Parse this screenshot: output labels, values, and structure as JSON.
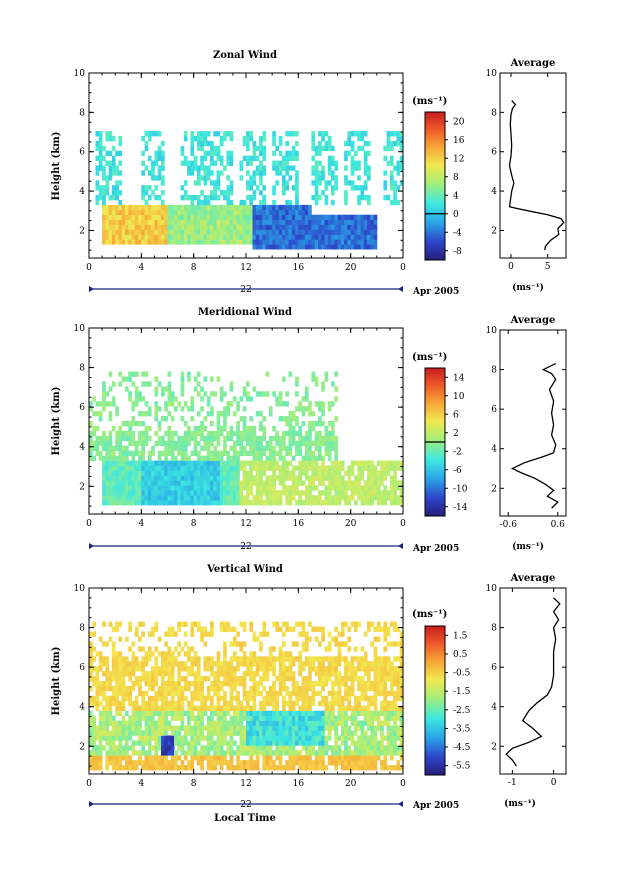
{
  "figure": {
    "date_label": "Apr 2005",
    "x_axis_title": "Local Time",
    "x_day_label": "22"
  },
  "chart_data": [
    {
      "type": "heatmap",
      "title": "Zonal Wind",
      "ylabel": "Height (km)",
      "x_ticks": [
        "0",
        "4",
        "8",
        "12",
        "16",
        "20",
        "0"
      ],
      "y_ticks": [
        "2",
        "4",
        "6",
        "8",
        "10"
      ],
      "xlim": [
        0,
        24
      ],
      "ylim": [
        0.6,
        10
      ],
      "colorbar": {
        "unit": "(ms⁻¹)",
        "labels": [
          "20",
          "16",
          "12",
          "8",
          "4",
          "0",
          "-4",
          "-8"
        ],
        "range": [
          -10,
          22
        ]
      },
      "average_profile": {
        "title": "Average",
        "xlabel": "(ms⁻¹)",
        "x_ticks": [
          "0",
          "5"
        ],
        "xlim": [
          -1.5,
          7.5
        ],
        "profile": [
          [
            4.6,
            1.0
          ],
          [
            4.7,
            1.2
          ],
          [
            5.4,
            1.5
          ],
          [
            6.5,
            1.8
          ],
          [
            6.4,
            2.1
          ],
          [
            7.2,
            2.4
          ],
          [
            6.8,
            2.6
          ],
          [
            5.0,
            2.8
          ],
          [
            3.0,
            2.95
          ],
          [
            1.0,
            3.1
          ],
          [
            -0.2,
            3.2
          ],
          [
            -0.1,
            3.5
          ],
          [
            0.1,
            4.0
          ],
          [
            0.4,
            4.4
          ],
          [
            0.1,
            4.8
          ],
          [
            -0.2,
            5.3
          ],
          [
            0.0,
            5.8
          ],
          [
            0.1,
            6.3
          ],
          [
            0.0,
            6.9
          ],
          [
            -0.1,
            7.4
          ],
          [
            0.0,
            7.9
          ],
          [
            0.2,
            8.2
          ],
          [
            0.6,
            8.4
          ],
          [
            0.1,
            8.6
          ]
        ]
      }
    },
    {
      "type": "heatmap",
      "title": "Meridional Wind",
      "ylabel": "Height (km)",
      "x_ticks": [
        "0",
        "4",
        "8",
        "12",
        "16",
        "20",
        "0"
      ],
      "y_ticks": [
        "2",
        "4",
        "6",
        "8",
        "10"
      ],
      "xlim": [
        0,
        24
      ],
      "ylim": [
        0.6,
        10
      ],
      "colorbar": {
        "unit": "(ms⁻¹)",
        "labels": [
          "14",
          "10",
          "6",
          "2",
          "-2",
          "-6",
          "-10",
          "-14"
        ],
        "range": [
          -16,
          16
        ]
      },
      "average_profile": {
        "title": "Average",
        "xlabel": "(ms⁻¹)",
        "x_ticks": [
          "-0.6",
          "0.6"
        ],
        "xlim": [
          -0.8,
          0.8
        ],
        "profile": [
          [
            0.45,
            1.0
          ],
          [
            0.6,
            1.3
          ],
          [
            0.35,
            1.6
          ],
          [
            0.5,
            1.9
          ],
          [
            0.3,
            2.2
          ],
          [
            0.05,
            2.5
          ],
          [
            -0.3,
            2.8
          ],
          [
            -0.5,
            3.0
          ],
          [
            -0.2,
            3.3
          ],
          [
            0.25,
            3.6
          ],
          [
            0.5,
            3.8
          ],
          [
            0.55,
            4.2
          ],
          [
            0.45,
            4.7
          ],
          [
            0.5,
            5.2
          ],
          [
            0.45,
            5.8
          ],
          [
            0.5,
            6.4
          ],
          [
            0.4,
            7.0
          ],
          [
            0.55,
            7.5
          ],
          [
            0.45,
            7.8
          ],
          [
            0.25,
            8.0
          ],
          [
            0.55,
            8.3
          ]
        ]
      }
    },
    {
      "type": "heatmap",
      "title": "Vertical Wind",
      "ylabel": "Height (km)",
      "xlabel": "Local Time",
      "x_ticks": [
        "0",
        "4",
        "8",
        "12",
        "16",
        "20",
        "0"
      ],
      "y_ticks": [
        "2",
        "4",
        "6",
        "8",
        "10"
      ],
      "xlim": [
        0,
        24
      ],
      "ylim": [
        0.6,
        10
      ],
      "colorbar": {
        "unit": "(ms⁻¹)",
        "labels": [
          "1.5",
          "0.5",
          "-0.5",
          "-1.5",
          "-2.5",
          "-3.5",
          "-4.5",
          "-5.5"
        ],
        "range": [
          -6,
          2
        ]
      },
      "average_profile": {
        "title": "Average",
        "xlabel": "(ms⁻¹)",
        "x_ticks": [
          "-1",
          "0"
        ],
        "xlim": [
          -1.3,
          0.3
        ],
        "profile": [
          [
            -0.9,
            1.0
          ],
          [
            -1.0,
            1.3
          ],
          [
            -1.15,
            1.6
          ],
          [
            -1.0,
            1.9
          ],
          [
            -0.6,
            2.2
          ],
          [
            -0.3,
            2.5
          ],
          [
            -0.5,
            2.9
          ],
          [
            -0.75,
            3.3
          ],
          [
            -0.6,
            3.8
          ],
          [
            -0.4,
            4.2
          ],
          [
            -0.15,
            4.6
          ],
          [
            -0.05,
            5.0
          ],
          [
            0.0,
            5.6
          ],
          [
            0.0,
            6.2
          ],
          [
            0.0,
            6.8
          ],
          [
            0.05,
            7.4
          ],
          [
            0.0,
            8.0
          ],
          [
            0.12,
            8.4
          ],
          [
            0.0,
            8.8
          ],
          [
            0.15,
            9.2
          ],
          [
            0.0,
            9.5
          ]
        ]
      }
    }
  ]
}
